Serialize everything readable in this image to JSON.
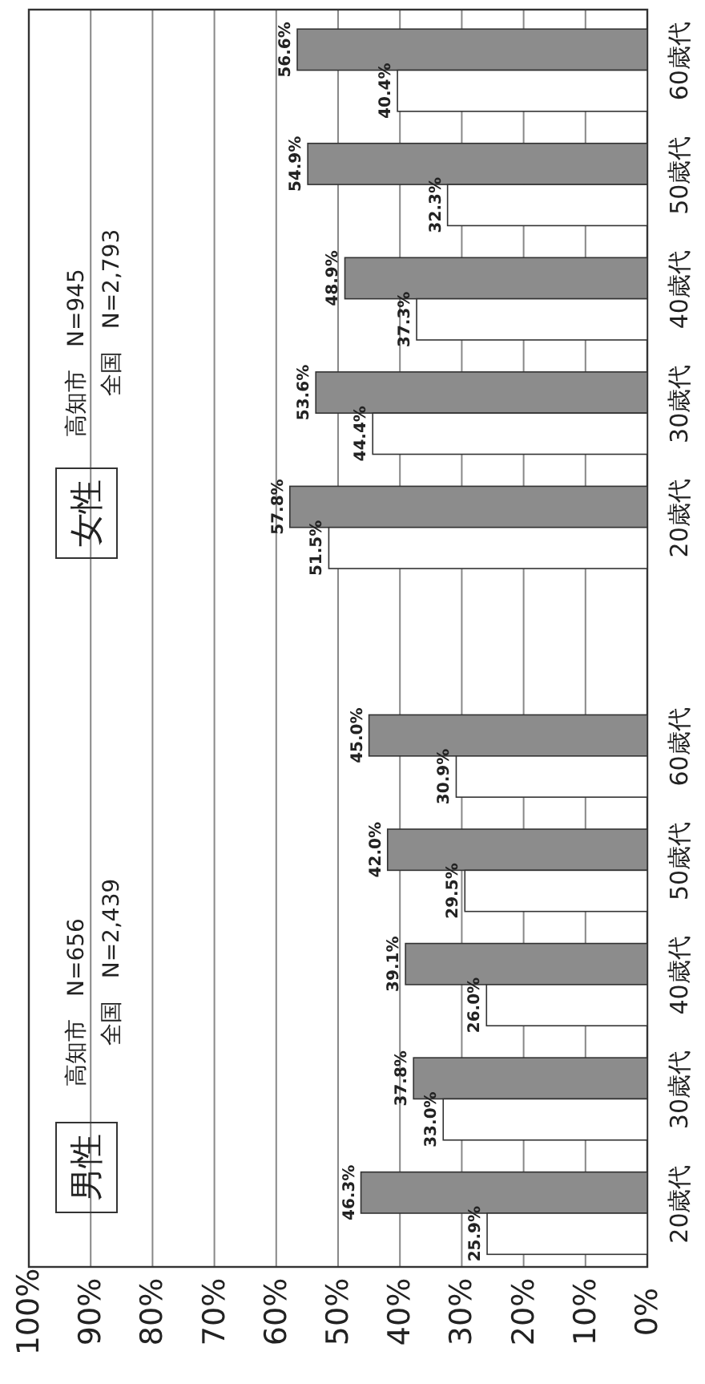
{
  "chart_data": {
    "type": "bar",
    "orientation": "horizontal",
    "categories": [
      "60歳代",
      "50歳代",
      "40歳代",
      "30歳代",
      "20歳代",
      null,
      "60歳代",
      "50歳代",
      "40歳代",
      "30歳代",
      "20歳代"
    ],
    "series": [
      {
        "color": "#8c8c8c",
        "values": [
          56.6,
          54.9,
          48.9,
          53.6,
          57.8,
          null,
          45.0,
          42.0,
          39.1,
          37.8,
          46.3
        ],
        "value_labels": [
          "56.6%",
          "54.9%",
          "48.9%",
          "53.6%",
          "57.8%",
          null,
          "45.0%",
          "42.0%",
          "39.1%",
          "37.8%",
          "46.3%"
        ]
      },
      {
        "color": "#ffffff",
        "values": [
          40.4,
          32.3,
          37.3,
          44.4,
          51.5,
          null,
          30.9,
          29.5,
          26.0,
          33.0,
          25.9
        ],
        "value_labels": [
          "40.4%",
          "32.3%",
          "37.3%",
          "44.4%",
          "51.5%",
          null,
          "30.9%",
          "29.5%",
          "26.0%",
          "33.0%",
          "25.9%"
        ]
      }
    ],
    "xlim": [
      100,
      0
    ],
    "xticks": [
      {
        "value": 100,
        "label": "100%"
      },
      {
        "value": 90,
        "label": "90%"
      },
      {
        "value": 80,
        "label": "80%"
      },
      {
        "value": 70,
        "label": "70%"
      },
      {
        "value": 60,
        "label": "60%"
      },
      {
        "value": 50,
        "label": "50%"
      },
      {
        "value": 40,
        "label": "40%"
      },
      {
        "value": 30,
        "label": "30%"
      },
      {
        "value": 20,
        "label": "20%"
      },
      {
        "value": 10,
        "label": "10%"
      },
      {
        "value": 0,
        "label": "0%"
      }
    ],
    "grid": "x",
    "annotations": [
      "女性",
      "高知市　N=945",
      "全国　N=2,793",
      "男性",
      "高知市　N=656",
      "全国　N=2,439"
    ]
  }
}
